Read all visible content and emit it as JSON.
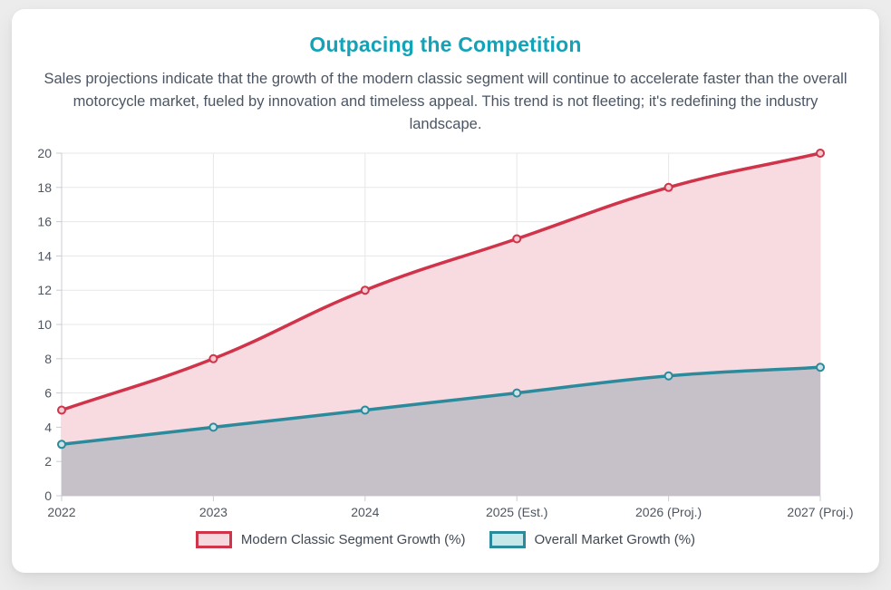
{
  "card": {
    "title": "Outpacing the Competition",
    "subtitle": "Sales projections indicate that the growth of the modern classic segment will continue to accelerate faster than the overall motorcycle market, fueled by innovation and timeless appeal. This trend is not fleeting; it's redefining the industry landscape."
  },
  "colors": {
    "page_background": "#ececec",
    "card_background": "#ffffff",
    "title_text": "#12a3b8",
    "subtitle_text": "#4b5563",
    "grid_line": "#e6e7ea",
    "axis_border": "#c9ccd3",
    "tick_text": "#4d5561",
    "legend_text": "#3f4854"
  },
  "chart_data": {
    "type": "area",
    "title": "",
    "xlabel": "",
    "ylabel": "",
    "categories": [
      "2022",
      "2023",
      "2024",
      "2025 (Est.)",
      "2026 (Proj.)",
      "2027 (Proj.)"
    ],
    "series": [
      {
        "name": "Modern Classic Segment Growth (%)",
        "values": [
          5,
          8,
          12,
          15,
          18,
          20
        ],
        "line_color": "#cf344a",
        "area_color": "#f7dbe0",
        "swatch_fill": "#f5d8dd",
        "marker_fill": "#f3ccd3"
      },
      {
        "name": "Overall Market Growth (%)",
        "values": [
          3,
          4,
          5,
          6,
          7,
          7.5
        ],
        "line_color": "#2b8a9c",
        "area_color": "#c6c0c8",
        "swatch_fill": "#c7e8e8",
        "marker_fill": "#cfe3e6"
      }
    ],
    "ylim": [
      0,
      20
    ],
    "y_step": 2,
    "grid": true,
    "legend_position": "bottom",
    "curve_tension": 0.4
  }
}
